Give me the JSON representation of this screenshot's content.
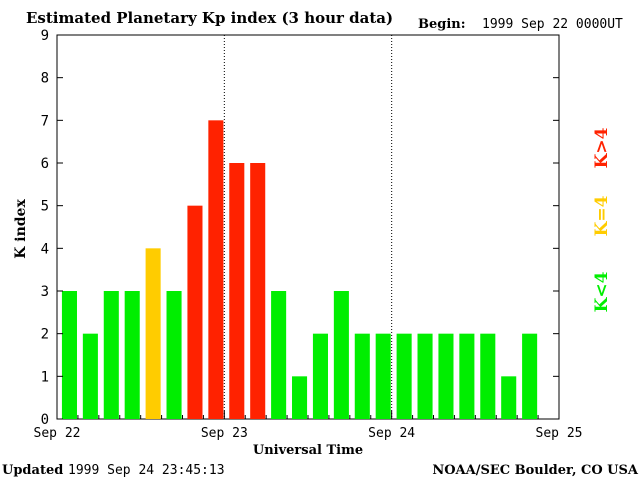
{
  "chart_data": {
    "type": "bar",
    "title": "Estimated Planetary Kp index (3 hour data)",
    "begin_label": "Begin:",
    "begin_value": "1999 Sep 22 0000UT",
    "ylabel": "K index",
    "xlabel": "Universal Time",
    "ylim": [
      0,
      9
    ],
    "yticks": [
      "0",
      "1",
      "2",
      "3",
      "4",
      "5",
      "6",
      "7",
      "8",
      "9"
    ],
    "xticks": [
      "Sep 22",
      "Sep 23",
      "Sep 24",
      "Sep 25"
    ],
    "day_separators": [
      8,
      16
    ],
    "values": [
      3,
      2,
      3,
      3,
      4,
      3,
      5,
      7,
      6,
      6,
      3,
      1,
      2,
      3,
      2,
      2,
      2,
      2,
      2,
      2,
      2,
      1,
      2
    ],
    "colors": {
      "low": "#00ee00",
      "mid": "#ffcc00",
      "high": "#ff2200",
      "axis": "#000000"
    },
    "legend": [
      {
        "label": "K<4",
        "color": "#00ee00"
      },
      {
        "label": "K=4",
        "color": "#ffcc00"
      },
      {
        "label": "K>4",
        "color": "#ff2200"
      }
    ]
  },
  "footer": {
    "updated_label": "Updated",
    "updated_value": "1999 Sep 24 23:45:13",
    "source": "NOAA/SEC Boulder, CO USA"
  }
}
